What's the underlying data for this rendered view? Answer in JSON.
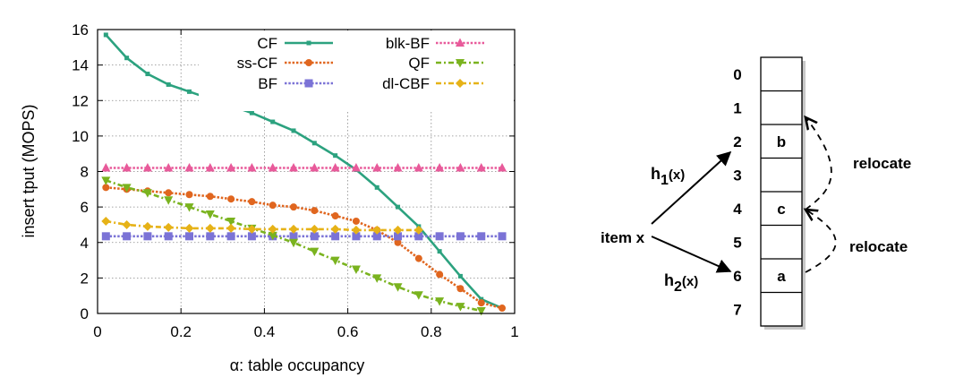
{
  "chart_data": {
    "type": "line",
    "title": "",
    "xlabel": "α: table occupancy",
    "ylabel": "insert tput (MOPS)",
    "xlim": [
      0,
      1
    ],
    "ylim": [
      0,
      16
    ],
    "xticks": [
      "0",
      "0.2",
      "0.4",
      "0.6",
      "0.8",
      "1"
    ],
    "yticks": [
      "0",
      "2",
      "4",
      "6",
      "8",
      "10",
      "12",
      "14",
      "16"
    ],
    "grid": true,
    "legend": "top-right",
    "series": [
      {
        "name": "CF",
        "color": "#2ca27f",
        "marker": "square-small",
        "dash": "solid",
        "x": [
          0.02,
          0.07,
          0.12,
          0.17,
          0.22,
          0.27,
          0.32,
          0.37,
          0.42,
          0.47,
          0.52,
          0.57,
          0.62,
          0.67,
          0.72,
          0.77,
          0.82,
          0.87,
          0.92,
          0.97
        ],
        "y": [
          15.7,
          14.4,
          13.5,
          12.9,
          12.5,
          12.1,
          11.7,
          11.3,
          10.8,
          10.3,
          9.6,
          8.9,
          8.1,
          7.1,
          6.0,
          4.9,
          3.5,
          2.1,
          0.8,
          0.3
        ]
      },
      {
        "name": "ss-CF",
        "color": "#e0661f",
        "marker": "circle",
        "dash": "dotted",
        "x": [
          0.02,
          0.07,
          0.12,
          0.17,
          0.22,
          0.27,
          0.32,
          0.37,
          0.42,
          0.47,
          0.52,
          0.57,
          0.62,
          0.67,
          0.72,
          0.77,
          0.82,
          0.87,
          0.92,
          0.97
        ],
        "y": [
          7.1,
          7.0,
          6.9,
          6.8,
          6.7,
          6.6,
          6.45,
          6.3,
          6.1,
          6.0,
          5.8,
          5.5,
          5.2,
          4.7,
          4.0,
          3.1,
          2.2,
          1.4,
          0.6,
          0.3
        ]
      },
      {
        "name": "BF",
        "color": "#7b73d6",
        "marker": "square",
        "dash": "dotted",
        "x": [
          0.02,
          0.07,
          0.12,
          0.17,
          0.22,
          0.27,
          0.32,
          0.37,
          0.42,
          0.47,
          0.52,
          0.57,
          0.62,
          0.67,
          0.72,
          0.77,
          0.82,
          0.87,
          0.92,
          0.97
        ],
        "y": [
          4.35,
          4.35,
          4.35,
          4.35,
          4.35,
          4.35,
          4.35,
          4.35,
          4.35,
          4.35,
          4.35,
          4.35,
          4.35,
          4.35,
          4.35,
          4.35,
          4.35,
          4.35,
          4.35,
          4.35
        ]
      },
      {
        "name": "blk-BF",
        "color": "#e85a9a",
        "marker": "triangle-up",
        "dash": "dotted",
        "x": [
          0.02,
          0.07,
          0.12,
          0.17,
          0.22,
          0.27,
          0.32,
          0.37,
          0.42,
          0.47,
          0.52,
          0.57,
          0.62,
          0.67,
          0.72,
          0.77,
          0.82,
          0.87,
          0.92,
          0.97
        ],
        "y": [
          8.2,
          8.2,
          8.2,
          8.2,
          8.2,
          8.2,
          8.2,
          8.2,
          8.2,
          8.2,
          8.2,
          8.2,
          8.2,
          8.2,
          8.2,
          8.2,
          8.2,
          8.2,
          8.2,
          8.2
        ]
      },
      {
        "name": "QF",
        "color": "#7ab31f",
        "marker": "triangle-down",
        "dash": "dashdot",
        "x": [
          0.02,
          0.07,
          0.12,
          0.17,
          0.22,
          0.27,
          0.32,
          0.37,
          0.42,
          0.47,
          0.52,
          0.57,
          0.62,
          0.67,
          0.72,
          0.77,
          0.82,
          0.87,
          0.92
        ],
        "y": [
          7.5,
          7.1,
          6.8,
          6.4,
          6.0,
          5.6,
          5.2,
          4.8,
          4.4,
          4.0,
          3.5,
          3.0,
          2.5,
          2.0,
          1.5,
          1.05,
          0.7,
          0.4,
          0.15
        ]
      },
      {
        "name": "dl-CBF",
        "color": "#e6b217",
        "marker": "diamond",
        "dash": "dashdot",
        "x": [
          0.02,
          0.07,
          0.12,
          0.17,
          0.22,
          0.27,
          0.32,
          0.37,
          0.42,
          0.47,
          0.52,
          0.57,
          0.62,
          0.67,
          0.72,
          0.77
        ],
        "y": [
          5.2,
          5.0,
          4.9,
          4.85,
          4.8,
          4.8,
          4.8,
          4.75,
          4.75,
          4.75,
          4.75,
          4.75,
          4.7,
          4.7,
          4.7,
          4.7
        ]
      }
    ]
  },
  "diagram": {
    "slots": [
      "0",
      "1",
      "2",
      "3",
      "4",
      "5",
      "6",
      "7"
    ],
    "cells": {
      "2": "b",
      "4": "c",
      "6": "a"
    },
    "item_label": "item x",
    "h1": {
      "base": "h",
      "sub": "1",
      "arg": "(x)"
    },
    "h2": {
      "base": "h",
      "sub": "2",
      "arg": "(x)"
    },
    "relocate_labels": [
      "relocate",
      "relocate"
    ]
  }
}
